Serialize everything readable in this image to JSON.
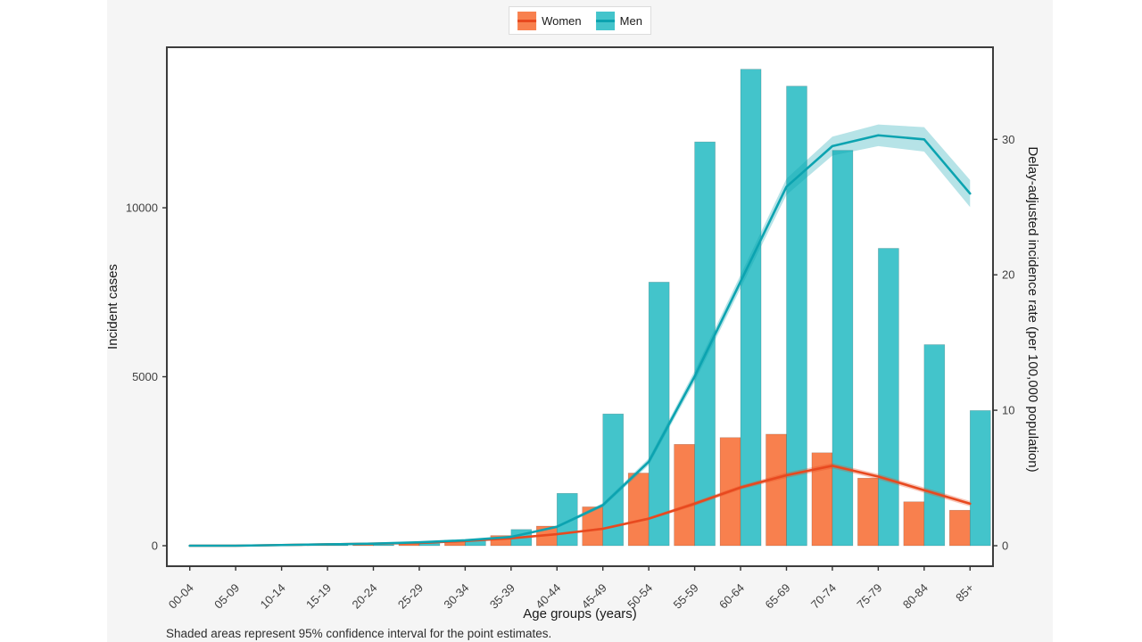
{
  "figure": {
    "background_color": "#f5f5f5",
    "panel_color": "#ffffff",
    "panel_border_color": "#3c3c3c"
  },
  "legend": {
    "items": [
      {
        "label": "Women"
      },
      {
        "label": "Men"
      }
    ]
  },
  "footnote": "Shaded areas represent 95% confidence interval for the point estimates.",
  "chart_data": {
    "type": "bar+line",
    "categories": [
      "00-04",
      "05-09",
      "10-14",
      "15-19",
      "20-24",
      "25-29",
      "30-34",
      "35-39",
      "40-44",
      "45-49",
      "50-54",
      "55-59",
      "60-64",
      "65-69",
      "70-74",
      "75-79",
      "80-84",
      "85+"
    ],
    "xlabel": "Age groups (years)",
    "ylabel_left": "Incident cases",
    "ylabel_right": "Delay-adjusted incidence rate (per 100,000 population)",
    "yticks_left": [
      0,
      5000,
      10000
    ],
    "yticks_right": [
      0,
      10,
      20,
      30
    ],
    "ylim_left": [
      0,
      14750
    ],
    "ylim_right": [
      0,
      36.8
    ],
    "legend_position": "top-center",
    "grid": "off",
    "bar_series": [
      {
        "name": "Women",
        "axis": "left",
        "values": [
          5,
          8,
          10,
          15,
          25,
          60,
          160,
          300,
          580,
          1150,
          2150,
          3000,
          3200,
          3300,
          2750,
          2000,
          1300,
          1050
        ]
      },
      {
        "name": "Men",
        "axis": "left",
        "values": [
          5,
          8,
          10,
          15,
          30,
          70,
          160,
          480,
          1550,
          3900,
          7800,
          11950,
          14100,
          13600,
          11700,
          8800,
          5950,
          4000
        ]
      }
    ],
    "line_series": [
      {
        "name": "Women",
        "axis": "right",
        "values": [
          0,
          0,
          0.05,
          0.1,
          0.15,
          0.2,
          0.35,
          0.55,
          0.85,
          1.25,
          2.0,
          3.1,
          4.3,
          5.2,
          5.9,
          5.1,
          4.1,
          3.1
        ],
        "ci_low": [
          0,
          0,
          0.0,
          0.05,
          0.1,
          0.15,
          0.3,
          0.5,
          0.8,
          1.15,
          1.9,
          2.95,
          4.15,
          5.0,
          5.7,
          4.9,
          3.9,
          2.9
        ],
        "ci_high": [
          0,
          0,
          0.1,
          0.15,
          0.2,
          0.25,
          0.4,
          0.6,
          0.9,
          1.35,
          2.1,
          3.25,
          4.45,
          5.4,
          6.1,
          5.3,
          4.3,
          3.3
        ]
      },
      {
        "name": "Men",
        "axis": "right",
        "values": [
          0,
          0,
          0.05,
          0.1,
          0.15,
          0.25,
          0.4,
          0.65,
          1.4,
          3.0,
          6.2,
          12.5,
          19.5,
          26.5,
          29.5,
          30.3,
          30.0,
          26.0
        ],
        "ci_low": [
          0,
          0,
          0.0,
          0.05,
          0.1,
          0.2,
          0.35,
          0.6,
          1.3,
          2.85,
          5.95,
          12.1,
          19.0,
          25.9,
          28.8,
          29.5,
          29.1,
          25.0
        ],
        "ci_high": [
          0,
          0,
          0.1,
          0.15,
          0.2,
          0.3,
          0.45,
          0.7,
          1.5,
          3.15,
          6.45,
          12.9,
          20.0,
          27.1,
          30.2,
          31.1,
          30.9,
          27.0
        ]
      }
    ],
    "colors": {
      "women_fill": "#f8804e",
      "women_line": "#e8491f",
      "men_fill": "#43c4cb",
      "men_line": "#0ca3b0",
      "tick_text": "#404040",
      "axis_title_text": "#1a1a1a"
    }
  }
}
